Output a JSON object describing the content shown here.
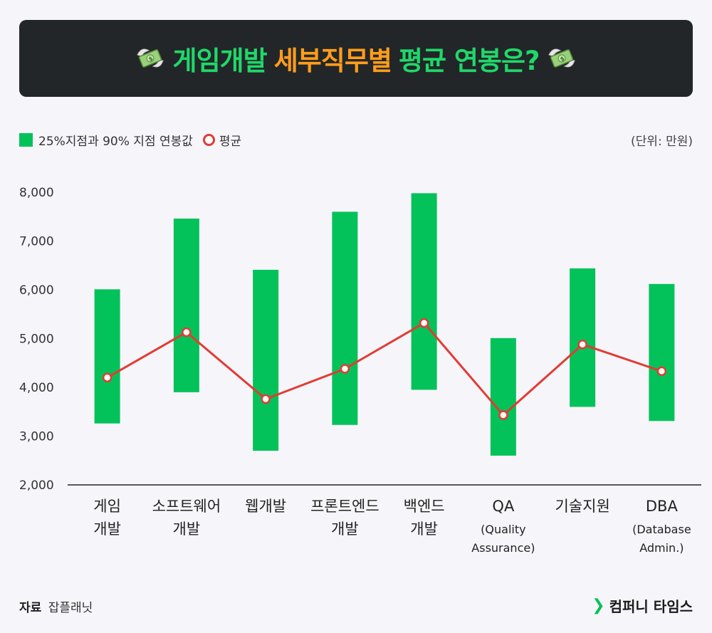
{
  "header": {
    "title_part1": "게임개발",
    "title_part2": "세부직무별",
    "title_part3": "평균 연봉은?"
  },
  "legend": {
    "range_label": "25%지점과 90% 지점 연봉값",
    "avg_label": "평균"
  },
  "unit_label": "(단위: 만원)",
  "footer": {
    "source_label": "자료",
    "source_value": "잡플래닛",
    "brand": "컴퍼니 타임스"
  },
  "colors": {
    "bar": "#04c25a",
    "line": "#e23b33",
    "title_green": "#1fd86a",
    "title_orange": "#ff9d1a",
    "banner_bg": "#232628"
  },
  "chart_data": {
    "type": "bar",
    "categories": [
      [
        "게임",
        "개발"
      ],
      [
        "소프트웨어",
        "개발"
      ],
      [
        "웹개발"
      ],
      [
        "프론트엔드",
        "개발"
      ],
      [
        "백엔드",
        "개발"
      ],
      [
        "QA",
        "(Quality",
        "Assurance)"
      ],
      [
        "기술지원"
      ],
      [
        "DBA",
        "(Database",
        "Admin.)"
      ]
    ],
    "series": [
      {
        "name": "25%지점과 90% 지점 연봉값",
        "type": "range-bar",
        "low": [
          3260,
          3900,
          2700,
          3230,
          3950,
          2600,
          3600,
          3310
        ],
        "high": [
          6010,
          7460,
          6410,
          7600,
          7980,
          5010,
          6440,
          6120
        ]
      },
      {
        "name": "평균",
        "type": "line",
        "values": [
          4200,
          5130,
          3760,
          4380,
          5320,
          3430,
          4880,
          4330
        ]
      }
    ],
    "yticks": [
      "2,000",
      "3,000",
      "4,000",
      "5,000",
      "6,000",
      "7,000",
      "8,000"
    ],
    "ylim": [
      2000,
      8000
    ],
    "legend_position": "top-left"
  }
}
